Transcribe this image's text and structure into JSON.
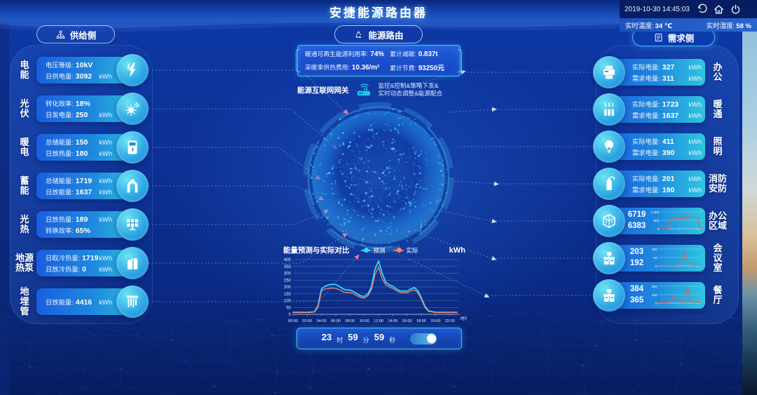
{
  "app": {
    "title": "安捷能源路由器",
    "datetime": "2019-10-30 14:45:03",
    "temperature_label": "实时温度:",
    "temperature": "34 ℃",
    "humidity_label": "实时湿度:",
    "humidity": "58 %"
  },
  "supply": {
    "button": "供给侧",
    "items": [
      {
        "name_lines": [
          "电",
          "能"
        ],
        "icon": "lightning-icon",
        "rows": [
          [
            "电压等级:",
            "10kV",
            ""
          ],
          [
            "日供电量:",
            "3092",
            "kWh"
          ]
        ]
      },
      {
        "name_lines": [
          "光",
          "伏"
        ],
        "icon": "sun-icon",
        "rows": [
          [
            "转化效率:",
            "18%",
            ""
          ],
          [
            "日发电量:",
            "250",
            "kWh"
          ]
        ]
      },
      {
        "name_lines": [
          "暖",
          "电"
        ],
        "icon": "meter-icon",
        "rows": [
          [
            "总储能量:",
            "150",
            "kWh"
          ],
          [
            "日放热量:",
            "180",
            "kWh"
          ]
        ]
      },
      {
        "name_lines": [
          "蓄",
          "能"
        ],
        "icon": "pipe-icon",
        "rows": [
          [
            "总储能量:",
            "1719",
            "kWh"
          ],
          [
            "日放能量:",
            "1637",
            "kWh"
          ]
        ]
      },
      {
        "name_lines": [
          "光",
          "热"
        ],
        "icon": "solar-panel-icon",
        "rows": [
          [
            "日放热量:",
            "189",
            "kWh"
          ],
          [
            "转换效率:",
            "65%",
            ""
          ]
        ]
      },
      {
        "name_lines": [
          "地源",
          "热泵"
        ],
        "icon": "tanks-icon",
        "rows": [
          [
            "日取冷热量:",
            "1719",
            "kWh"
          ],
          [
            "日放冷热量:",
            "0",
            "kWh"
          ]
        ]
      },
      {
        "name_lines": [
          "地",
          "埋",
          "管"
        ],
        "icon": "buried-pipes-icon",
        "rows": [
          [
            "日放能量:",
            "4416",
            "kWh"
          ]
        ]
      }
    ]
  },
  "demand": {
    "button": "需求侧",
    "items": [
      {
        "name_lines": [
          "办",
          "公"
        ],
        "icon": "printer-icon",
        "rows": [
          [
            "实际电量:",
            "327",
            "kWh"
          ],
          [
            "需求电量:",
            "311",
            "kWh"
          ]
        ]
      },
      {
        "name_lines": [
          "暖",
          "通"
        ],
        "icon": "radiator-icon",
        "rows": [
          [
            "实际电量:",
            "1723",
            "kWh"
          ],
          [
            "需求电量:",
            "1637",
            "kWh"
          ]
        ]
      },
      {
        "name_lines": [
          "照",
          "明"
        ],
        "icon": "bulb-icon",
        "rows": [
          [
            "实际电量:",
            "411",
            "kWh"
          ],
          [
            "需求电量:",
            "390",
            "kWh"
          ]
        ]
      },
      {
        "name_lines": [
          "消防",
          "安防"
        ],
        "icon": "fire-extinguisher-icon",
        "rows": [
          [
            "实际电量:",
            "201",
            "kWh"
          ],
          [
            "需求电量:",
            "190",
            "kWh"
          ]
        ]
      },
      {
        "name_lines": [
          "办公",
          "区域"
        ],
        "icon": "cube-icon",
        "values": [
          "6719",
          "6383"
        ],
        "spark_ref": "office_area_spark"
      },
      {
        "name_lines": [
          "会",
          "议",
          "室"
        ],
        "icon": "desk-icon",
        "values": [
          "203",
          "192"
        ],
        "spark_ref": "meeting_room_spark"
      },
      {
        "name_lines": [
          "餐",
          "厅"
        ],
        "icon": "desk-icon",
        "values": [
          "384",
          "365"
        ],
        "spark_ref": "canteen_spark"
      }
    ]
  },
  "center": {
    "router_button": "能源路由",
    "stats": [
      [
        "暖通可再生能源利用率:",
        "74%"
      ],
      [
        "累计减碳:",
        "0.837t"
      ],
      [
        "采暖季供热费用:",
        "10.36/m²"
      ],
      [
        "累计节费:",
        "93250元"
      ]
    ],
    "gateway_label": "能源互联网网关",
    "gateway_desc_line1": "监控&控制&策略下发&",
    "gateway_desc_line2": "实时动态调整&能源配合"
  },
  "chart_data": {
    "main": {
      "type": "line",
      "title": "能量预测与实际对比",
      "unit": "kWh",
      "xlabel": "时间",
      "ylim": [
        0,
        400
      ],
      "yticks": [
        0,
        50,
        100,
        150,
        200,
        250,
        300,
        350,
        400
      ],
      "xticks": [
        "00:00",
        "02:00",
        "04:00",
        "06:00",
        "08:00",
        "10:00",
        "12:00",
        "14:00",
        "16:00",
        "18:00",
        "20:00",
        "22:00"
      ],
      "x_hours": [
        0,
        1,
        2,
        3,
        3.5,
        4,
        4.5,
        5,
        5.5,
        6,
        6.5,
        7,
        7.5,
        8,
        8.5,
        9,
        9.5,
        10,
        10.5,
        11,
        11.5,
        12,
        12.5,
        13,
        13.5,
        14,
        14.5,
        15,
        16,
        16.5,
        17,
        17.5,
        18,
        18.5,
        19,
        20,
        21,
        22,
        23
      ],
      "series": [
        {
          "name": "预测",
          "color": "#3ad6f2",
          "values": [
            15,
            15,
            15,
            18,
            60,
            185,
            205,
            215,
            220,
            218,
            205,
            185,
            178,
            178,
            165,
            150,
            135,
            130,
            150,
            200,
            330,
            390,
            300,
            235,
            215,
            205,
            185,
            172,
            170,
            185,
            195,
            175,
            120,
            60,
            25,
            15,
            15,
            15,
            15
          ]
        },
        {
          "name": "实际",
          "color": "#f4846e",
          "values": [
            13,
            13,
            13,
            16,
            50,
            170,
            185,
            190,
            192,
            190,
            180,
            165,
            160,
            160,
            150,
            135,
            122,
            118,
            135,
            180,
            290,
            345,
            260,
            215,
            200,
            190,
            172,
            160,
            158,
            170,
            178,
            160,
            110,
            50,
            22,
            13,
            13,
            13,
            13
          ]
        }
      ],
      "legend_position": "top",
      "grid": true
    },
    "office_area_spark": {
      "type": "line",
      "ytick_labels": [
        "1,000",
        "500",
        "0"
      ],
      "ymax": 1000,
      "values": [
        5,
        5,
        5,
        8,
        560,
        600,
        590,
        610,
        600,
        740,
        700,
        690,
        660,
        640,
        30,
        8
      ]
    },
    "meeting_room_spark": {
      "type": "line",
      "ytick_labels": [
        "100",
        "50",
        "0"
      ],
      "ymax": 100,
      "values": [
        3,
        3,
        3,
        3,
        3,
        3,
        4,
        20,
        90,
        20,
        4,
        3,
        3,
        3
      ]
    },
    "canteen_spark": {
      "type": "line",
      "ytick_labels": [
        "200",
        "100",
        "0"
      ],
      "ymax": 200,
      "values": [
        4,
        4,
        4,
        6,
        30,
        90,
        25,
        6,
        10,
        195,
        20,
        5,
        4,
        4
      ]
    }
  },
  "timer": {
    "hour": "23",
    "hour_unit": "时",
    "minute": "59",
    "minute_unit": "分",
    "second": "59",
    "second_unit": "秒",
    "toggle_on": true
  },
  "colors": {
    "accent_cyan": "#35d0f0",
    "pink": "#f27ba6",
    "card_blue": "#1a5ede",
    "card_teal": "#2fc6e0",
    "spark_line": "#e2604a"
  }
}
